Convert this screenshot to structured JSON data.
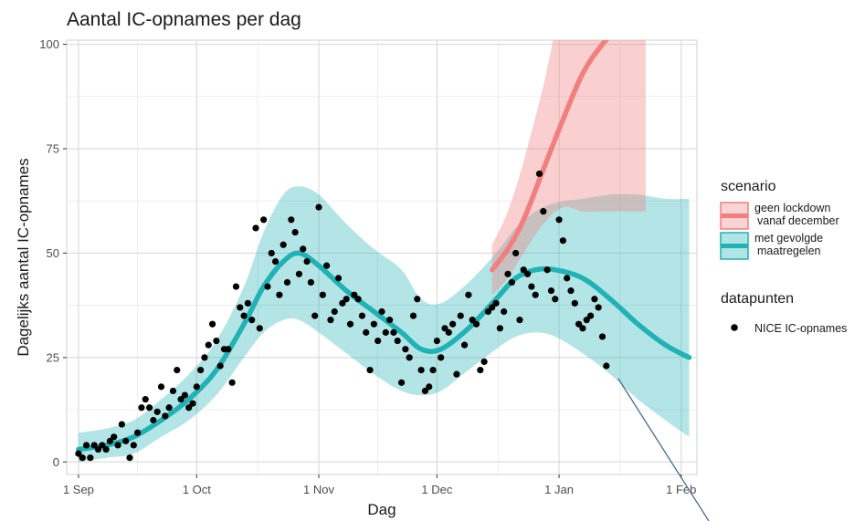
{
  "chart_data": {
    "type": "line",
    "title": "Aantal IC-opnames per dag",
    "xlabel": "Dag",
    "ylabel": "Dagelijks aantal IC-opnames",
    "x_ticks": [
      "1 Sep",
      "1 Oct",
      "1 Nov",
      "1 Dec",
      "1 Jan",
      "1 Feb"
    ],
    "y_ticks": [
      "0",
      "25",
      "50",
      "75",
      "100"
    ],
    "xlim": [
      "2020-08-29",
      "2021-02-05"
    ],
    "ylim": [
      -3,
      101
    ],
    "grid": true,
    "legend_position": "right",
    "colors": {
      "geen_lockdown": "#f08080",
      "met_maatregelen": "#20b2b5",
      "points": "#000000",
      "grid": "#e6e6e6",
      "arrow": "#4a6b8a"
    },
    "legend": {
      "scenario_title": "scenario",
      "scenario_items": [
        {
          "key": "geen_lockdown",
          "lines": [
            "geen lockdown",
            "vanaf december"
          ]
        },
        {
          "key": "met_maatregelen",
          "lines": [
            "met gevolgde",
            "maatregelen"
          ]
        }
      ],
      "points_title": "datapunten",
      "points_label": "NICE IC-opnames"
    },
    "series": [
      {
        "key": "met_maatregelen",
        "name": "met gevolgde maatregelen",
        "dates": [
          "2020-09-01",
          "2020-09-08",
          "2020-09-15",
          "2020-09-22",
          "2020-09-29",
          "2020-10-06",
          "2020-10-13",
          "2020-10-18",
          "2020-10-23",
          "2020-10-27",
          "2020-11-01",
          "2020-11-08",
          "2020-11-15",
          "2020-11-22",
          "2020-11-27",
          "2020-12-02",
          "2020-12-09",
          "2020-12-16",
          "2020-12-21",
          "2020-12-26",
          "2020-12-31",
          "2021-01-07",
          "2021-01-14",
          "2021-01-21",
          "2021-01-28",
          "2021-02-03"
        ],
        "mid": [
          3,
          4,
          6,
          10,
          15,
          22,
          33,
          42,
          48,
          50,
          47,
          41,
          36,
          31,
          27,
          27,
          32,
          39,
          44,
          46,
          46,
          44,
          39,
          33,
          28,
          25
        ],
        "lower": [
          0,
          1,
          2,
          6,
          10,
          16,
          25,
          31,
          34,
          34,
          31,
          26,
          21,
          17,
          16,
          17,
          22,
          27,
          30,
          31,
          30,
          26,
          21,
          15,
          10,
          6
        ],
        "upper": [
          7,
          8,
          10,
          15,
          21,
          29,
          42,
          55,
          64,
          66,
          64,
          57,
          51,
          46,
          39,
          38,
          43,
          50,
          56,
          60,
          62,
          63,
          64,
          64,
          63,
          63
        ]
      },
      {
        "key": "geen_lockdown",
        "name": "geen lockdown vanaf december",
        "dates": [
          "2020-12-15",
          "2020-12-19",
          "2020-12-23",
          "2020-12-28",
          "2021-01-02",
          "2021-01-07",
          "2021-01-12",
          "2021-01-18",
          "2021-01-23"
        ],
        "mid": [
          46,
          51,
          58,
          70,
          82,
          93,
          100,
          106,
          110
        ],
        "lower": [
          40,
          44,
          50,
          57,
          61,
          60,
          60,
          60,
          60
        ],
        "upper": [
          52,
          60,
          72,
          90,
          110,
          110,
          110,
          110,
          110
        ]
      }
    ],
    "points": {
      "name": "NICE IC-opnames",
      "dates": [
        "2020-09-01",
        "2020-09-02",
        "2020-09-03",
        "2020-09-04",
        "2020-09-05",
        "2020-09-06",
        "2020-09-07",
        "2020-09-08",
        "2020-09-09",
        "2020-09-10",
        "2020-09-11",
        "2020-09-12",
        "2020-09-13",
        "2020-09-14",
        "2020-09-15",
        "2020-09-16",
        "2020-09-17",
        "2020-09-18",
        "2020-09-19",
        "2020-09-20",
        "2020-09-21",
        "2020-09-22",
        "2020-09-23",
        "2020-09-24",
        "2020-09-25",
        "2020-09-26",
        "2020-09-27",
        "2020-09-28",
        "2020-09-29",
        "2020-09-30",
        "2020-10-01",
        "2020-10-02",
        "2020-10-03",
        "2020-10-04",
        "2020-10-05",
        "2020-10-06",
        "2020-10-07",
        "2020-10-08",
        "2020-10-09",
        "2020-10-10",
        "2020-10-11",
        "2020-10-12",
        "2020-10-13",
        "2020-10-14",
        "2020-10-15",
        "2020-10-16",
        "2020-10-17",
        "2020-10-18",
        "2020-10-19",
        "2020-10-20",
        "2020-10-21",
        "2020-10-22",
        "2020-10-23",
        "2020-10-24",
        "2020-10-25",
        "2020-10-26",
        "2020-10-27",
        "2020-10-28",
        "2020-10-29",
        "2020-10-30",
        "2020-10-31",
        "2020-11-01",
        "2020-11-02",
        "2020-11-03",
        "2020-11-04",
        "2020-11-05",
        "2020-11-06",
        "2020-11-07",
        "2020-11-08",
        "2020-11-09",
        "2020-11-10",
        "2020-11-11",
        "2020-11-12",
        "2020-11-13",
        "2020-11-14",
        "2020-11-15",
        "2020-11-16",
        "2020-11-17",
        "2020-11-18",
        "2020-11-19",
        "2020-11-20",
        "2020-11-21",
        "2020-11-22",
        "2020-11-23",
        "2020-11-24",
        "2020-11-25",
        "2020-11-26",
        "2020-11-27",
        "2020-11-28",
        "2020-11-29",
        "2020-11-30",
        "2020-12-01",
        "2020-12-02",
        "2020-12-03",
        "2020-12-04",
        "2020-12-05",
        "2020-12-06",
        "2020-12-07",
        "2020-12-08",
        "2020-12-09",
        "2020-12-10",
        "2020-12-11",
        "2020-12-12",
        "2020-12-13",
        "2020-12-14",
        "2020-12-15",
        "2020-12-16",
        "2020-12-17",
        "2020-12-18",
        "2020-12-19",
        "2020-12-20",
        "2020-12-21",
        "2020-12-22",
        "2020-12-23",
        "2020-12-24",
        "2020-12-25",
        "2020-12-26",
        "2020-12-27",
        "2020-12-28",
        "2020-12-29",
        "2020-12-30",
        "2020-12-31",
        "2021-01-01",
        "2021-01-02",
        "2021-01-03",
        "2021-01-04",
        "2021-01-05",
        "2021-01-06",
        "2021-01-07",
        "2021-01-08",
        "2021-01-09",
        "2021-01-10",
        "2021-01-11",
        "2021-01-12",
        "2021-01-13"
      ],
      "values": [
        2,
        1,
        4,
        1,
        4,
        3,
        4,
        3,
        5,
        6,
        4,
        9,
        5,
        1,
        4,
        7,
        13,
        15,
        13,
        10,
        12,
        18,
        11,
        13,
        17,
        22,
        15,
        16,
        13,
        14,
        18,
        22,
        25,
        28,
        33,
        29,
        23,
        27,
        27,
        19,
        42,
        37,
        35,
        38,
        34,
        56,
        32,
        58,
        42,
        50,
        48,
        40,
        52,
        43,
        58,
        55,
        45,
        51,
        48,
        43,
        35,
        61,
        40,
        47,
        34,
        36,
        44,
        38,
        39,
        33,
        40,
        39,
        35,
        31,
        22,
        33,
        29,
        36,
        31,
        34,
        31,
        29,
        19,
        27,
        25,
        35,
        39,
        22,
        17,
        18,
        22,
        29,
        25,
        32,
        31,
        33,
        21,
        35,
        28,
        40,
        34,
        33,
        22,
        24,
        36,
        37,
        38,
        32,
        36,
        45,
        43,
        50,
        34,
        46,
        45,
        42,
        40,
        69,
        60,
        46,
        41,
        39,
        58,
        53,
        44,
        41,
        38,
        33,
        32,
        34,
        35,
        39,
        37,
        30,
        23
      ]
    },
    "annotation": {
      "type": "arrow",
      "from_date": "2021-01-16",
      "from_value": 20
    }
  }
}
